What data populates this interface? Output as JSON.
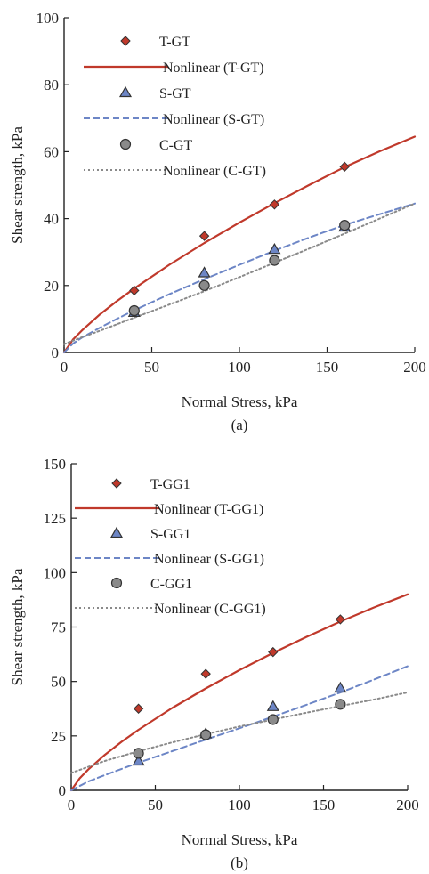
{
  "colors": {
    "t_series": "#c0392b",
    "s_series": "#6d86c6",
    "c_series": "#8a8a8a",
    "axis": "#222222"
  },
  "chart_data": [
    {
      "type": "scatter",
      "panel_label": "(a)",
      "xlabel": "Normal Stress, kPa",
      "ylabel": "Shear strength, kPa",
      "xlim": [
        0,
        200
      ],
      "ylim": [
        0,
        100
      ],
      "xticks": [
        0,
        50,
        100,
        150,
        200
      ],
      "yticks": [
        0,
        20,
        40,
        60,
        80,
        100
      ],
      "grid": false,
      "legend_position": "top-left",
      "series": [
        {
          "name": "T-GT",
          "kind": "points",
          "marker": "diamond",
          "color": "#c0392b",
          "x": [
            40,
            80,
            120,
            160
          ],
          "y": [
            18.5,
            34.8,
            44.2,
            55.5
          ]
        },
        {
          "name": "Nonlinear (T-GT)",
          "kind": "curve",
          "style": "solid",
          "color": "#c0392b",
          "x": [
            0,
            5,
            10,
            20,
            30,
            40,
            60,
            80,
            100,
            120,
            140,
            160,
            180,
            200
          ],
          "y": [
            0,
            3.8,
            6.5,
            11.2,
            15.3,
            19.1,
            26.2,
            32.7,
            38.8,
            44.6,
            50.1,
            55.4,
            60.1,
            64.5
          ]
        },
        {
          "name": "S-GT",
          "kind": "points",
          "marker": "triangle",
          "color": "#6d86c6",
          "x": [
            40,
            80,
            120,
            160
          ],
          "y": [
            12.0,
            23.8,
            30.8,
            37.5
          ]
        },
        {
          "name": "Nonlinear (S-GT)",
          "kind": "curve",
          "style": "dashed",
          "color": "#6d86c6",
          "x": [
            0,
            5,
            10,
            20,
            30,
            40,
            60,
            80,
            100,
            120,
            140,
            160,
            180,
            200
          ],
          "y": [
            0,
            2.6,
            4.4,
            7.3,
            10.0,
            12.6,
            17.4,
            21.9,
            26.2,
            30.4,
            34.4,
            38.1,
            41.3,
            44.5
          ]
        },
        {
          "name": "C-GT",
          "kind": "points",
          "marker": "circle",
          "color": "#8a8a8a",
          "x": [
            40,
            80,
            120,
            160
          ],
          "y": [
            12.5,
            20.0,
            27.5,
            38.0
          ]
        },
        {
          "name": "Nonlinear (C-GT)",
          "kind": "curve",
          "style": "dotted",
          "color": "#8a8a8a",
          "x": [
            0,
            10,
            20,
            40,
            60,
            80,
            100,
            120,
            140,
            160,
            180,
            200
          ],
          "y": [
            2.5,
            4.5,
            6.4,
            10.4,
            14.3,
            18.3,
            22.5,
            26.8,
            31.1,
            35.5,
            40.0,
            44.5
          ]
        }
      ]
    },
    {
      "type": "scatter",
      "panel_label": "(b)",
      "xlabel": "Normal Stress, kPa",
      "ylabel": "Shear strength, kPa",
      "xlim": [
        0,
        200
      ],
      "ylim": [
        0,
        150
      ],
      "xticks": [
        0,
        50,
        100,
        150,
        200
      ],
      "yticks": [
        0,
        25,
        50,
        75,
        100,
        125,
        150
      ],
      "grid": false,
      "legend_position": "top-left",
      "series": [
        {
          "name": "T-GG1",
          "kind": "points",
          "marker": "diamond",
          "color": "#c0392b",
          "x": [
            40,
            80,
            120,
            160
          ],
          "y": [
            37.5,
            53.5,
            63.5,
            78.5
          ]
        },
        {
          "name": "Nonlinear (T-GG1)",
          "kind": "curve",
          "style": "solid",
          "color": "#c0392b",
          "x": [
            0,
            5,
            10,
            20,
            30,
            40,
            60,
            80,
            100,
            120,
            140,
            160,
            180,
            200
          ],
          "y": [
            0,
            5.5,
            9.5,
            16.3,
            22.3,
            27.8,
            37.8,
            46.8,
            55.2,
            63.1,
            70.5,
            77.5,
            84.0,
            90.0
          ]
        },
        {
          "name": "S-GG1",
          "kind": "points",
          "marker": "triangle",
          "color": "#6d86c6",
          "x": [
            40,
            80,
            120,
            160
          ],
          "y": [
            13.5,
            26.0,
            38.5,
            47.0
          ]
        },
        {
          "name": "Nonlinear (S-GG1)",
          "kind": "curve",
          "style": "dashed",
          "color": "#6d86c6",
          "x": [
            0,
            10,
            20,
            40,
            60,
            80,
            100,
            120,
            140,
            160,
            180,
            200
          ],
          "y": [
            0,
            4.0,
            7.0,
            12.7,
            18.0,
            23.3,
            28.5,
            33.8,
            39.3,
            44.9,
            50.9,
            57.0
          ]
        },
        {
          "name": "C-GG1",
          "kind": "points",
          "marker": "circle",
          "color": "#8a8a8a",
          "x": [
            40,
            80,
            120,
            160
          ],
          "y": [
            17.0,
            25.5,
            32.5,
            39.5
          ]
        },
        {
          "name": "Nonlinear (C-GG1)",
          "kind": "curve",
          "style": "dotted",
          "color": "#8a8a8a",
          "x": [
            0,
            20,
            40,
            60,
            80,
            100,
            120,
            140,
            160,
            180,
            200
          ],
          "y": [
            8.0,
            13.5,
            18.0,
            22.0,
            25.8,
            29.3,
            32.5,
            35.7,
            38.7,
            41.7,
            45.0
          ]
        }
      ]
    }
  ]
}
